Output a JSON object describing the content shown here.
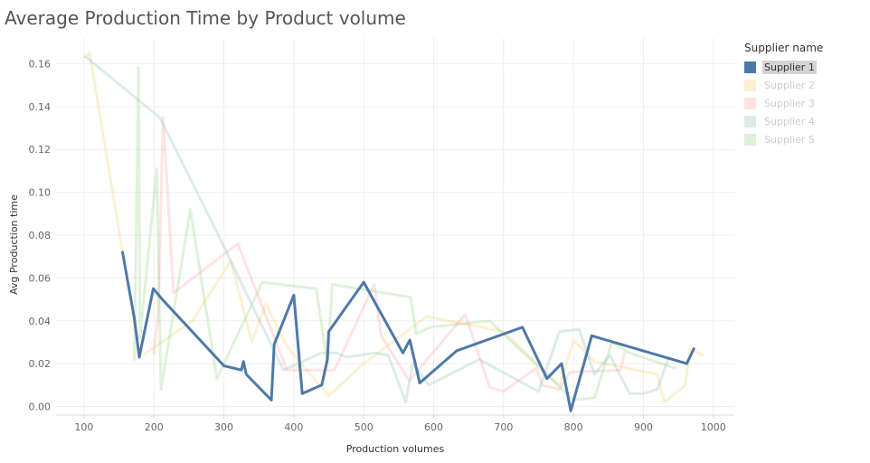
{
  "chart_data": {
    "type": "line",
    "title": "Average Production Time by Product volume",
    "xlabel": "Production volumes",
    "ylabel": "Avg Production time",
    "xlim": [
      60,
      1030
    ],
    "ylim": [
      -0.004,
      0.172
    ],
    "x_ticks": [
      {
        "value": 100,
        "label": "100"
      },
      {
        "value": 200,
        "label": "200"
      },
      {
        "value": 300,
        "label": "300"
      },
      {
        "value": 400,
        "label": "400"
      },
      {
        "value": 500,
        "label": "500"
      },
      {
        "value": 600,
        "label": "600"
      },
      {
        "value": 700,
        "label": "700"
      },
      {
        "value": 800,
        "label": "800"
      },
      {
        "value": 900,
        "label": "900"
      },
      {
        "value": 1000,
        "label": "1000"
      }
    ],
    "y_ticks": [
      {
        "value": 0.0,
        "label": "0.00"
      },
      {
        "value": 0.02,
        "label": "0.02"
      },
      {
        "value": 0.04,
        "label": "0.04"
      },
      {
        "value": 0.06,
        "label": "0.06"
      },
      {
        "value": 0.08,
        "label": "0.08"
      },
      {
        "value": 0.1,
        "label": "0.10"
      },
      {
        "value": 0.12,
        "label": "0.12"
      },
      {
        "value": 0.14,
        "label": "0.14"
      },
      {
        "value": 0.16,
        "label": "0.16"
      }
    ],
    "grid": true,
    "legend_title": "Supplier name",
    "legend_position": "right",
    "highlighted_series": "Supplier 1",
    "series": [
      {
        "name": "Supplier 1",
        "color": "#4e79a7",
        "highlighted": true,
        "points": [
          [
            155,
            0.072
          ],
          [
            172,
            0.041
          ],
          [
            179,
            0.023
          ],
          [
            199,
            0.055
          ],
          [
            212,
            0.05
          ],
          [
            300,
            0.019
          ],
          [
            325,
            0.017
          ],
          [
            328,
            0.021
          ],
          [
            332,
            0.015
          ],
          [
            368,
            0.003
          ],
          [
            372,
            0.029
          ],
          [
            400,
            0.052
          ],
          [
            412,
            0.006
          ],
          [
            440,
            0.01
          ],
          [
            448,
            0.022
          ],
          [
            450,
            0.035
          ],
          [
            500,
            0.058
          ],
          [
            556,
            0.025
          ],
          [
            566,
            0.031
          ],
          [
            580,
            0.011
          ],
          [
            633,
            0.026
          ],
          [
            727,
            0.037
          ],
          [
            762,
            0.013
          ],
          [
            783,
            0.02
          ],
          [
            796,
            -0.002
          ],
          [
            826,
            0.033
          ],
          [
            962,
            0.02
          ],
          [
            972,
            0.027
          ]
        ]
      },
      {
        "name": "Supplier 2",
        "color": "#f1ce63",
        "highlighted": false,
        "points": [
          [
            100,
            0.163
          ],
          [
            108,
            0.165
          ],
          [
            180,
            0.023
          ],
          [
            255,
            0.04
          ],
          [
            310,
            0.068
          ],
          [
            340,
            0.03
          ],
          [
            360,
            0.048
          ],
          [
            390,
            0.028
          ],
          [
            450,
            0.005
          ],
          [
            500,
            0.02
          ],
          [
            590,
            0.042
          ],
          [
            700,
            0.035
          ],
          [
            780,
            0.01
          ],
          [
            800,
            0.031
          ],
          [
            830,
            0.021
          ],
          [
            920,
            0.015
          ],
          [
            930,
            0.002
          ],
          [
            960,
            0.01
          ],
          [
            966,
            0.027
          ],
          [
            985,
            0.024
          ]
        ]
      },
      {
        "name": "Supplier 3",
        "color": "#ff9d9a",
        "highlighted": false,
        "points": [
          [
            200,
            0.025
          ],
          [
            206,
            0.043
          ],
          [
            213,
            0.135
          ],
          [
            228,
            0.053
          ],
          [
            320,
            0.076
          ],
          [
            390,
            0.017
          ],
          [
            458,
            0.017
          ],
          [
            515,
            0.057
          ],
          [
            525,
            0.033
          ],
          [
            565,
            0.012
          ],
          [
            645,
            0.043
          ],
          [
            680,
            0.009
          ],
          [
            700,
            0.007
          ],
          [
            747,
            0.018
          ],
          [
            755,
            0.01
          ],
          [
            780,
            0.008
          ],
          [
            795,
            0.016
          ],
          [
            867,
            0.017
          ],
          [
            873,
            0.025
          ]
        ]
      },
      {
        "name": "Supplier 4",
        "color": "#86bcb6",
        "highlighted": false,
        "points": [
          [
            103,
            0.163
          ],
          [
            208,
            0.135
          ],
          [
            292,
            0.08
          ],
          [
            385,
            0.017
          ],
          [
            440,
            0.025
          ],
          [
            462,
            0.025
          ],
          [
            475,
            0.023
          ],
          [
            515,
            0.025
          ],
          [
            535,
            0.024
          ],
          [
            560,
            0.002
          ],
          [
            570,
            0.02
          ],
          [
            593,
            0.01
          ],
          [
            665,
            0.022
          ],
          [
            750,
            0.007
          ],
          [
            780,
            0.035
          ],
          [
            808,
            0.036
          ],
          [
            830,
            0.015
          ],
          [
            852,
            0.024
          ],
          [
            880,
            0.006
          ],
          [
            900,
            0.006
          ],
          [
            920,
            0.008
          ],
          [
            935,
            0.022
          ]
        ]
      },
      {
        "name": "Supplier 5",
        "color": "#8cd17d",
        "highlighted": false,
        "points": [
          [
            172,
            0.022
          ],
          [
            178,
            0.158
          ],
          [
            180,
            0.032
          ],
          [
            204,
            0.111
          ],
          [
            210,
            0.008
          ],
          [
            252,
            0.092
          ],
          [
            290,
            0.013
          ],
          [
            355,
            0.058
          ],
          [
            432,
            0.055
          ],
          [
            448,
            0.02
          ],
          [
            455,
            0.057
          ],
          [
            567,
            0.051
          ],
          [
            575,
            0.034
          ],
          [
            595,
            0.037
          ],
          [
            680,
            0.04
          ],
          [
            800,
            0.003
          ],
          [
            830,
            0.004
          ],
          [
            855,
            0.03
          ],
          [
            880,
            0.025
          ],
          [
            945,
            0.018
          ]
        ]
      }
    ]
  }
}
